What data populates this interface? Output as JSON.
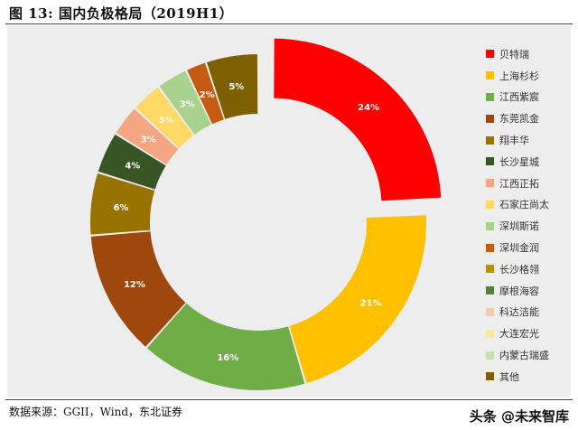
{
  "figure": {
    "title": "图 13:  国内负极格局（2019H1）",
    "source": "数据来源：GGII，Wind，东北证券",
    "watermark": "头条 @未来智库"
  },
  "chart_data": {
    "type": "pie",
    "title": "",
    "unit": "%",
    "labels": [
      "贝特瑞",
      "上海杉杉",
      "江西紫宸",
      "东莞凯金",
      "翔丰华",
      "长沙星城",
      "江西正拓",
      "石家庄尚太",
      "深圳斯诺",
      "深圳金润",
      "长沙格翎",
      "摩根海容",
      "科达洁能",
      "大连宏光",
      "内蒙古瑞盛",
      "其他"
    ],
    "values": [
      24,
      21,
      16,
      12,
      6,
      4,
      3,
      3,
      3,
      2,
      0,
      0,
      0,
      0,
      0,
      5
    ],
    "data_labels": [
      "24%",
      "21%",
      "16%",
      "12%",
      "6%",
      "4%",
      "3%",
      "3%",
      "3%",
      "2%",
      "",
      "",
      "",
      "",
      "",
      "5%"
    ],
    "colors": [
      "#ff0000",
      "#ffc000",
      "#70ad47",
      "#9e480e",
      "#997300",
      "#375623",
      "#f4a582",
      "#ffd966",
      "#a9d18e",
      "#c55a11",
      "#bf9000",
      "#548235",
      "#f8cbad",
      "#ffe699",
      "#c5e0b3",
      "#7f6000"
    ],
    "exploded": [
      "贝特瑞"
    ],
    "legend_position": "right"
  }
}
